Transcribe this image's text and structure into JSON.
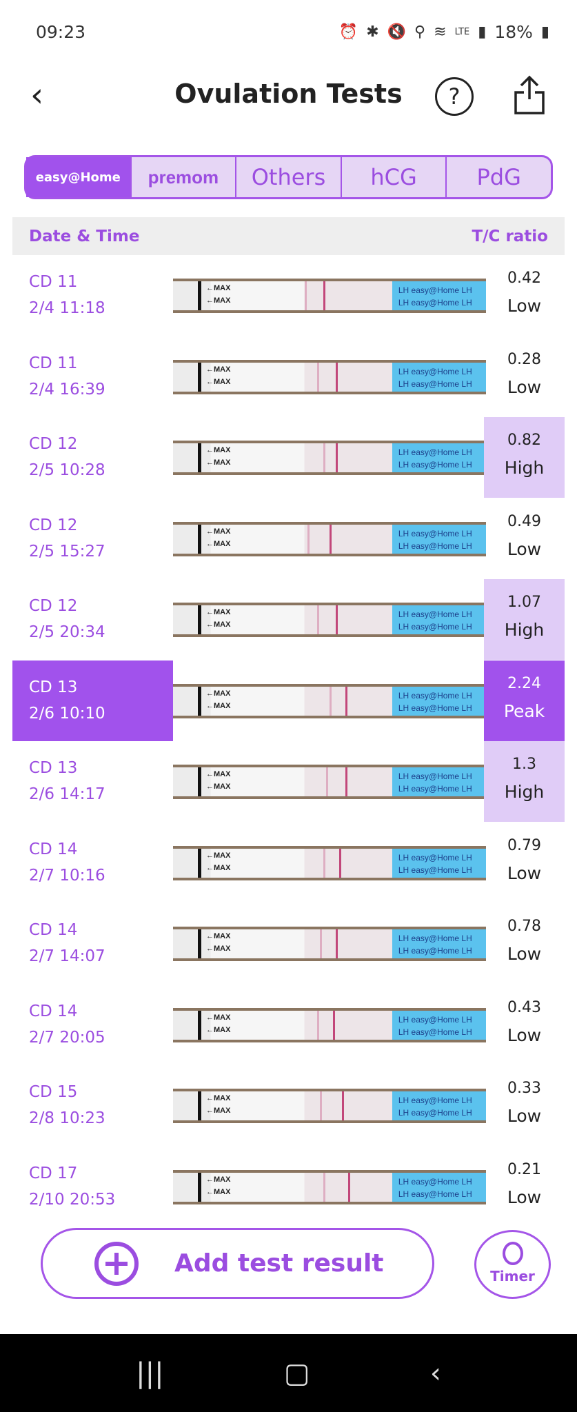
{
  "status": {
    "time": "09:23",
    "battery": "18%",
    "network": "LTE"
  },
  "header": {
    "title": "Ovulation Tests",
    "back": "‹",
    "help": "?"
  },
  "tabs": [
    "easy@Home",
    "premom",
    "Others",
    "hCG",
    "PdG"
  ],
  "table": {
    "col_date": "Date & Time",
    "col_ratio": "T/C ratio"
  },
  "strip_text": {
    "max": "←MAX",
    "lh": "LH easy@Home LH"
  },
  "rows": [
    {
      "cd": "CD 11",
      "date": "2/4  11:18",
      "ratio": "0.42",
      "level": "Low"
    },
    {
      "cd": "CD 11",
      "date": "2/4  16:39",
      "ratio": "0.28",
      "level": "Low"
    },
    {
      "cd": "CD 12",
      "date": "2/5  10:28",
      "ratio": "0.82",
      "level": "High"
    },
    {
      "cd": "CD 12",
      "date": "2/5  15:27",
      "ratio": "0.49",
      "level": "Low"
    },
    {
      "cd": "CD 12",
      "date": "2/5  20:34",
      "ratio": "1.07",
      "level": "High"
    },
    {
      "cd": "CD 13",
      "date": "2/6  10:10",
      "ratio": "2.24",
      "level": "Peak",
      "selected": true
    },
    {
      "cd": "CD 13",
      "date": "2/6  14:17",
      "ratio": "1.3",
      "level": "High"
    },
    {
      "cd": "CD 14",
      "date": "2/7  10:16",
      "ratio": "0.79",
      "level": "Low"
    },
    {
      "cd": "CD 14",
      "date": "2/7  14:07",
      "ratio": "0.78",
      "level": "Low"
    },
    {
      "cd": "CD 14",
      "date": "2/7  20:05",
      "ratio": "0.43",
      "level": "Low"
    },
    {
      "cd": "CD 15",
      "date": "2/8  10:23",
      "ratio": "0.33",
      "level": "Low"
    },
    {
      "cd": "CD 17",
      "date": "2/10  20:53",
      "ratio": "0.21",
      "level": "Low"
    }
  ],
  "actions": {
    "add": "Add test result",
    "timer": "Timer"
  },
  "colors": {
    "accent": "#a152ec",
    "high_bg": "#e0ccf7"
  }
}
